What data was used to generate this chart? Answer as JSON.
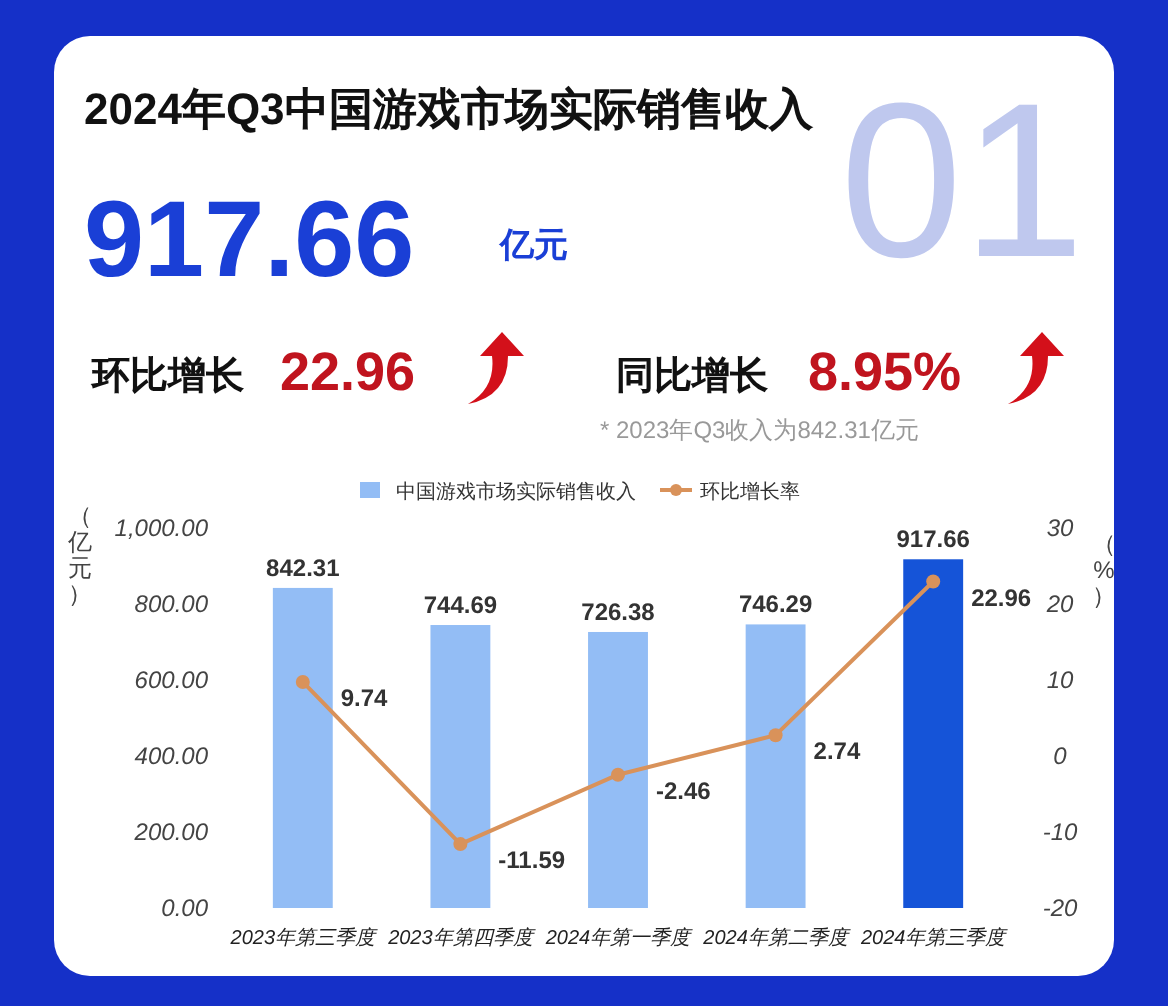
{
  "chart_data": {
    "type": "bar",
    "title": "2024年Q3中国游戏市场实际销售收入",
    "annotations": [
      "917.66",
      "亿元",
      "环比增长",
      "22.96",
      "同比增长",
      "8.95%",
      "* 2023年Q3收入为842.31亿元",
      "01"
    ],
    "categories": [
      "2023年第三季度",
      "2023年第四季度",
      "2024年第一季度",
      "2024年第二季度",
      "2024年第三季度"
    ],
    "series": [
      {
        "name": "中国游戏市场实际销售收入",
        "colors": [
          "#93bdf5",
          "#93bdf5",
          "#93bdf5",
          "#93bdf5",
          "#1554d8"
        ],
        "values": [
          842.31,
          744.69,
          726.38,
          746.29,
          917.66
        ]
      },
      {
        "name": "环比增长率",
        "type": "line",
        "axis": "y2",
        "color": "#d9925a",
        "marker": "circle",
        "values": [
          9.74,
          -11.59,
          -2.46,
          2.74,
          22.96
        ]
      }
    ],
    "ylabel": "（亿元）",
    "y2label": "（%）",
    "ylim": [
      0,
      1000
    ],
    "yticks": [
      {
        "value": 0,
        "label": "0.00"
      },
      {
        "value": 200,
        "label": "200.00"
      },
      {
        "value": 400,
        "label": "400.00"
      },
      {
        "value": 600,
        "label": "600.00"
      },
      {
        "value": 800,
        "label": "800.00"
      },
      {
        "value": 1000,
        "label": "1,000.00"
      }
    ],
    "y2lim": [
      -20,
      30
    ],
    "y2ticks": [
      -20,
      -10,
      0,
      10,
      20,
      30
    ],
    "data_labels": true,
    "legend": "top",
    "grid": false
  }
}
